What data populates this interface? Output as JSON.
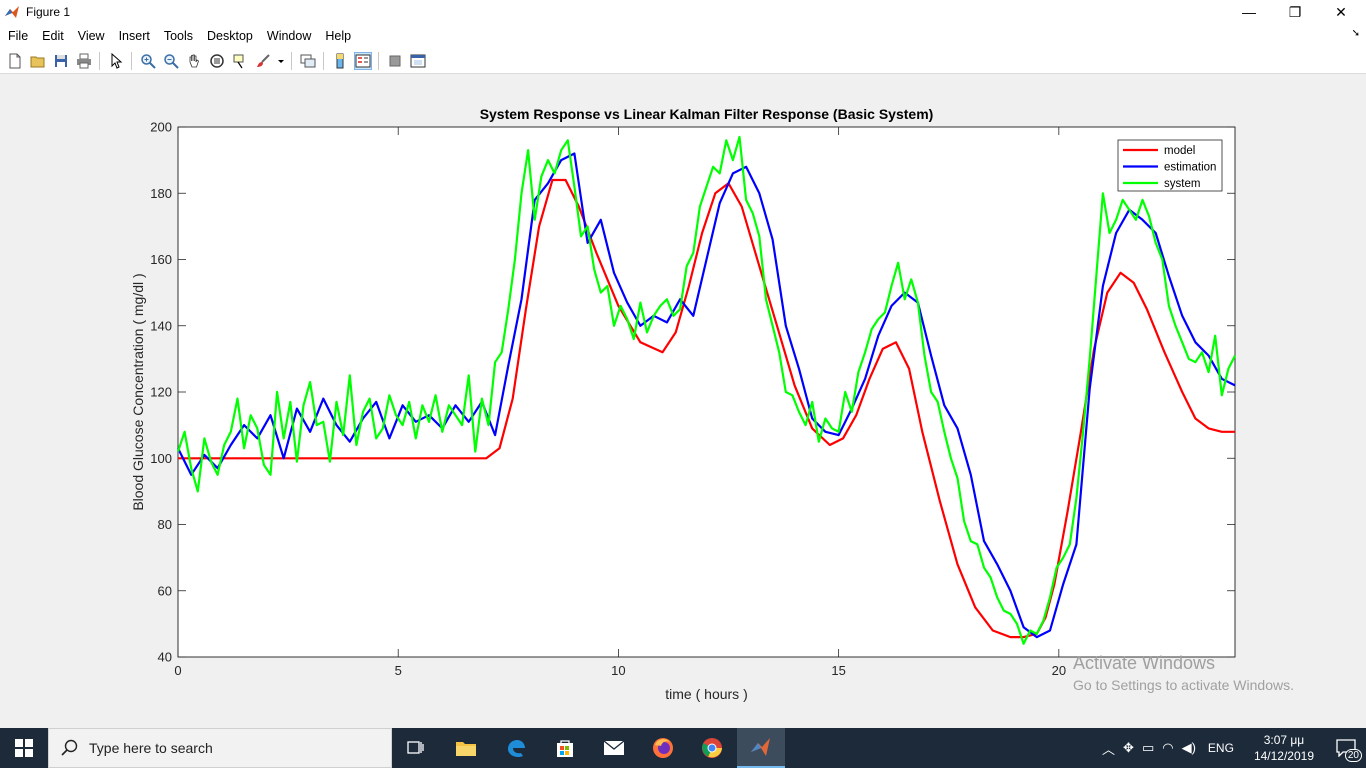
{
  "window": {
    "title": "Figure 1",
    "minimize_glyph": "—",
    "maximize_glyph": "❐",
    "close_glyph": "✕"
  },
  "menu": [
    "File",
    "Edit",
    "View",
    "Insert",
    "Tools",
    "Desktop",
    "Window",
    "Help"
  ],
  "toolbar_icons": [
    "new-figure-icon",
    "open-file-icon",
    "save-icon",
    "print-icon",
    "pointer-icon",
    "zoom-in-icon",
    "zoom-out-icon",
    "pan-icon",
    "rotate-3d-icon",
    "data-cursor-icon",
    "brush-icon",
    "link-plot-icon",
    "colorbar-icon",
    "legend-icon",
    "hide-plot-tools-icon",
    "show-plot-tools-icon"
  ],
  "chart_data": {
    "type": "line",
    "title": "System Response vs Linear Kalman Filter Response (Basic System)",
    "xlabel": "time ( hours )",
    "ylabel": "Blood Glucose Concentration ( mg/dl )",
    "xlim": [
      0,
      24
    ],
    "ylim": [
      40,
      200
    ],
    "xticks": [
      0,
      5,
      10,
      15,
      20
    ],
    "yticks": [
      40,
      60,
      80,
      100,
      120,
      140,
      160,
      180,
      200
    ],
    "legend_position": "top-right",
    "series": [
      {
        "name": "model",
        "color": "#ff0000",
        "x": [
          0,
          7.0,
          7.3,
          7.6,
          7.9,
          8.2,
          8.5,
          8.8,
          9.1,
          9.5,
          10.0,
          10.5,
          11.0,
          11.3,
          11.6,
          11.9,
          12.2,
          12.5,
          12.8,
          13.2,
          13.6,
          14.0,
          14.4,
          14.8,
          15.1,
          15.4,
          15.7,
          16.0,
          16.3,
          16.6,
          16.9,
          17.3,
          17.7,
          18.1,
          18.5,
          18.9,
          19.2,
          19.5,
          19.7,
          19.9,
          20.2,
          20.5,
          20.8,
          21.1,
          21.4,
          21.7,
          22.0,
          22.4,
          22.8,
          23.1,
          23.4,
          23.7,
          24.0
        ],
        "y": [
          100,
          100,
          103,
          118,
          145,
          170,
          184,
          184,
          176,
          162,
          146,
          135,
          132,
          138,
          152,
          168,
          180,
          183,
          176,
          158,
          140,
          122,
          109,
          104,
          106,
          113,
          124,
          133,
          135,
          127,
          108,
          87,
          68,
          55,
          48,
          46,
          46,
          47,
          52,
          62,
          84,
          108,
          133,
          150,
          156,
          153,
          145,
          132,
          120,
          112,
          109,
          108,
          108
        ]
      },
      {
        "name": "estimation",
        "color": "#0000ff",
        "x": [
          0,
          0.3,
          0.6,
          0.9,
          1.2,
          1.5,
          1.8,
          2.1,
          2.4,
          2.7,
          3.0,
          3.3,
          3.6,
          3.9,
          4.2,
          4.5,
          4.8,
          5.1,
          5.4,
          5.7,
          6.0,
          6.3,
          6.6,
          6.9,
          7.2,
          7.5,
          7.8,
          8.1,
          8.4,
          8.7,
          9.0,
          9.3,
          9.6,
          9.9,
          10.2,
          10.5,
          10.8,
          11.1,
          11.4,
          11.7,
          12.0,
          12.3,
          12.6,
          12.9,
          13.2,
          13.5,
          13.8,
          14.1,
          14.4,
          14.7,
          15.0,
          15.3,
          15.6,
          15.9,
          16.2,
          16.5,
          16.8,
          17.1,
          17.4,
          17.7,
          18.0,
          18.3,
          18.6,
          18.9,
          19.2,
          19.5,
          19.8,
          20.1,
          20.4,
          20.7,
          21.0,
          21.3,
          21.6,
          21.9,
          22.2,
          22.5,
          22.8,
          23.1,
          23.4,
          23.7,
          24.0
        ],
        "y": [
          103,
          95,
          101,
          97,
          104,
          110,
          106,
          113,
          100,
          115,
          108,
          118,
          110,
          105,
          112,
          117,
          106,
          116,
          111,
          113,
          109,
          116,
          111,
          117,
          107,
          128,
          148,
          178,
          183,
          190,
          192,
          165,
          172,
          156,
          147,
          140,
          143,
          141,
          148,
          143,
          160,
          177,
          186,
          188,
          180,
          166,
          140,
          127,
          112,
          108,
          107,
          115,
          124,
          137,
          146,
          150,
          147,
          131,
          116,
          109,
          95,
          75,
          68,
          60,
          49,
          46,
          48,
          62,
          74,
          121,
          152,
          168,
          175,
          172,
          168,
          155,
          143,
          135,
          131,
          124,
          122
        ]
      },
      {
        "name": "system",
        "color": "#00ff00",
        "x": [
          0,
          0.15,
          0.3,
          0.45,
          0.6,
          0.75,
          0.9,
          1.05,
          1.2,
          1.35,
          1.5,
          1.65,
          1.8,
          1.95,
          2.1,
          2.25,
          2.4,
          2.55,
          2.7,
          2.85,
          3.0,
          3.15,
          3.3,
          3.45,
          3.6,
          3.75,
          3.9,
          4.05,
          4.2,
          4.35,
          4.5,
          4.65,
          4.8,
          4.95,
          5.1,
          5.25,
          5.4,
          5.55,
          5.7,
          5.85,
          6.0,
          6.15,
          6.3,
          6.45,
          6.6,
          6.75,
          6.9,
          7.05,
          7.2,
          7.35,
          7.5,
          7.65,
          7.8,
          7.95,
          8.1,
          8.25,
          8.4,
          8.55,
          8.7,
          8.85,
          9.0,
          9.15,
          9.3,
          9.45,
          9.6,
          9.75,
          9.9,
          10.05,
          10.2,
          10.35,
          10.5,
          10.65,
          10.8,
          10.95,
          11.1,
          11.25,
          11.4,
          11.55,
          11.7,
          11.85,
          12.0,
          12.15,
          12.3,
          12.45,
          12.6,
          12.75,
          12.9,
          13.05,
          13.2,
          13.35,
          13.5,
          13.65,
          13.8,
          13.95,
          14.1,
          14.25,
          14.4,
          14.55,
          14.7,
          14.85,
          15.0,
          15.15,
          15.3,
          15.45,
          15.6,
          15.75,
          15.9,
          16.05,
          16.2,
          16.35,
          16.5,
          16.65,
          16.8,
          16.95,
          17.1,
          17.25,
          17.4,
          17.55,
          17.7,
          17.85,
          18.0,
          18.15,
          18.3,
          18.45,
          18.6,
          18.75,
          18.9,
          19.05,
          19.2,
          19.35,
          19.5,
          19.65,
          19.8,
          19.95,
          20.1,
          20.25,
          20.4,
          20.55,
          20.7,
          20.85,
          21.0,
          21.15,
          21.3,
          21.45,
          21.6,
          21.75,
          21.9,
          22.05,
          22.2,
          22.35,
          22.5,
          22.65,
          22.8,
          22.95,
          23.1,
          23.25,
          23.4,
          23.55,
          23.7,
          23.85,
          24.0
        ],
        "y": [
          102,
          108,
          97,
          90,
          106,
          99,
          95,
          104,
          108,
          118,
          103,
          113,
          109,
          98,
          95,
          120,
          106,
          117,
          99,
          116,
          123,
          110,
          111,
          99,
          117,
          107,
          125,
          104,
          114,
          118,
          106,
          109,
          119,
          113,
          110,
          117,
          106,
          116,
          111,
          119,
          108,
          116,
          113,
          110,
          125,
          102,
          118,
          110,
          129,
          132,
          145,
          160,
          180,
          193,
          172,
          185,
          190,
          186,
          193,
          196,
          182,
          167,
          170,
          157,
          150,
          152,
          140,
          146,
          142,
          136,
          147,
          138,
          143,
          146,
          148,
          143,
          145,
          158,
          162,
          176,
          182,
          188,
          186,
          196,
          190,
          197,
          178,
          174,
          167,
          148,
          140,
          132,
          120,
          119,
          114,
          110,
          117,
          105,
          112,
          109,
          108,
          120,
          114,
          126,
          132,
          139,
          142,
          144,
          152,
          159,
          148,
          154,
          147,
          131,
          120,
          117,
          108,
          100,
          94,
          81,
          75,
          74,
          67,
          64,
          58,
          54,
          53,
          50,
          44,
          48,
          47,
          51,
          58,
          67,
          70,
          74,
          88,
          108,
          130,
          155,
          180,
          168,
          172,
          178,
          175,
          172,
          178,
          173,
          165,
          160,
          146,
          140,
          135,
          130,
          129,
          132,
          126,
          137,
          119,
          127,
          131
        ]
      }
    ]
  },
  "watermark": {
    "line1": "Activate Windows",
    "line2": "Go to Settings to activate Windows."
  },
  "taskbar": {
    "search_placeholder": "Type here to search",
    "language": "ENG",
    "time": "3:07 μμ",
    "date": "14/12/2019",
    "notification_count": "20",
    "apps": [
      "task-view-icon",
      "file-explorer-icon",
      "edge-icon",
      "store-icon",
      "mail-icon",
      "firefox-icon",
      "chrome-icon",
      "matlab-icon"
    ]
  }
}
